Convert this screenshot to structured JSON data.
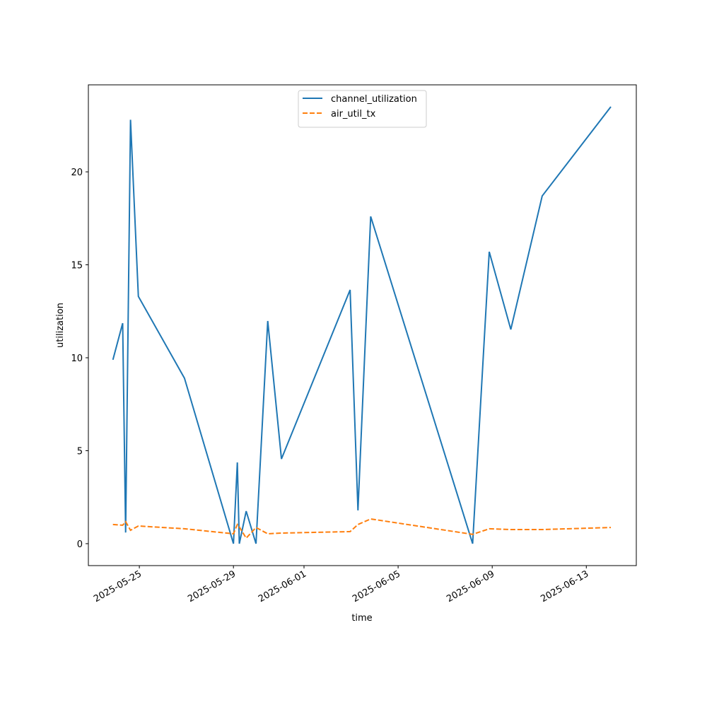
{
  "chart_data": {
    "type": "line",
    "xlabel": "time",
    "ylabel": "utilization",
    "x": [
      "2025-05-23T21:00",
      "2025-05-24T07:00",
      "2025-05-24T10:00",
      "2025-05-24T15:00",
      "2025-05-24T23:00",
      "2025-05-26T22:00",
      "2025-05-29T00:00",
      "2025-05-29T04:00",
      "2025-05-29T06:00",
      "2025-05-29T13:00",
      "2025-05-29T23:00",
      "2025-05-30T11:00",
      "2025-05-31T01:00",
      "2025-06-02T23:00",
      "2025-06-03T07:00",
      "2025-06-03T20:00",
      "2025-06-08T04:00",
      "2025-06-08T21:00",
      "2025-06-09T19:00",
      "2025-06-11T03:00",
      "2025-06-14T01:00"
    ],
    "series": [
      {
        "name": "channel_utilization",
        "color": "#1f77b4",
        "linestyle": "solid",
        "values": [
          9.89,
          11.86,
          0.6,
          22.8,
          13.3,
          8.9,
          0,
          4.37,
          0,
          1.75,
          0,
          11.98,
          4.56,
          13.65,
          1.79,
          17.6,
          0,
          15.7,
          11.52,
          18.7,
          23.5
        ]
      },
      {
        "name": "air_util_tx",
        "color": "#ff7f0e",
        "linestyle": "dashed",
        "values": [
          1.03,
          0.99,
          1.18,
          0.72,
          0.95,
          0.8,
          0.53,
          1.03,
          0.9,
          0.3,
          0.87,
          0.53,
          0.57,
          0.65,
          1.03,
          1.33,
          0.5,
          0.8,
          0.76,
          0.76,
          0.87
        ]
      }
    ],
    "xlim": [
      "2025-05-22T20:00",
      "2025-06-15T03:00"
    ],
    "xticks": [
      "2025-05-25",
      "2025-05-29",
      "2025-06-01",
      "2025-06-05",
      "2025-06-09",
      "2025-06-13"
    ],
    "ylim": [
      -1.18,
      24.68
    ],
    "yticks": [
      0,
      5,
      10,
      15,
      20
    ],
    "grid": false,
    "legend": "upper center"
  }
}
